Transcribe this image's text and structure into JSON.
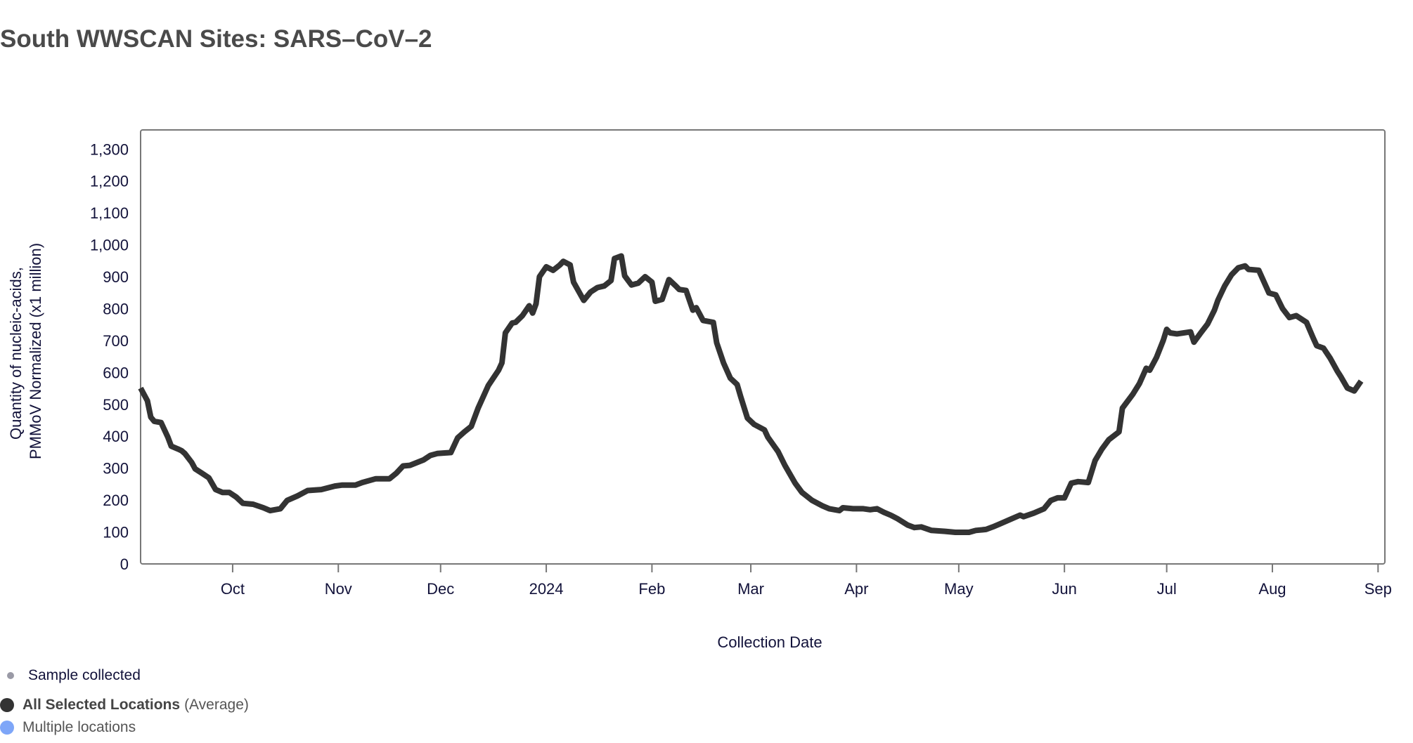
{
  "title": "South WWSCAN Sites: SARS–CoV–2",
  "legend": {
    "sample": "Sample collected",
    "series_bold": "All Selected Locations",
    "series_suffix": "(Average)",
    "multiple": "Multiple locations"
  },
  "colors": {
    "line": "#333333",
    "sample_dot": "#9a9aa6",
    "selected_dot": "#333333",
    "multiple_dot": "#7ea6f8"
  },
  "chart_data": {
    "type": "line",
    "xlabel": "Collection Date",
    "ylabel": [
      "Quantity of nucleic-acids,",
      "PMMoV Normalized (x1 million)"
    ],
    "xlim": [
      "2023-09-04",
      "2024-09-03"
    ],
    "ylim": [
      0,
      1360
    ],
    "yticks": [
      0,
      100,
      200,
      300,
      400,
      500,
      600,
      700,
      800,
      900,
      1000,
      1100,
      1200,
      1300
    ],
    "ytick_labels": [
      "0",
      "100",
      "200",
      "300",
      "400",
      "500",
      "600",
      "700",
      "800",
      "900",
      "1,000",
      "1,100",
      "1,200",
      "1,300"
    ],
    "xticks": [
      {
        "date": "2023-10-01",
        "label": "Oct"
      },
      {
        "date": "2023-11-01",
        "label": "Nov"
      },
      {
        "date": "2023-12-01",
        "label": "Dec"
      },
      {
        "date": "2024-01-01",
        "label": "2024"
      },
      {
        "date": "2024-02-01",
        "label": "Feb"
      },
      {
        "date": "2024-03-01",
        "label": "Mar"
      },
      {
        "date": "2024-04-01",
        "label": "Apr"
      },
      {
        "date": "2024-05-01",
        "label": "May"
      },
      {
        "date": "2024-06-01",
        "label": "Jun"
      },
      {
        "date": "2024-07-01",
        "label": "Jul"
      },
      {
        "date": "2024-08-01",
        "label": "Aug"
      },
      {
        "date": "2024-09-01",
        "label": "Sep"
      }
    ],
    "grid": false,
    "series": [
      {
        "name": "All Selected Locations",
        "points": [
          [
            "2023-09-04",
            551
          ],
          [
            "2023-09-06",
            511
          ],
          [
            "2023-09-07",
            460
          ],
          [
            "2023-09-08",
            447
          ],
          [
            "2023-09-10",
            443
          ],
          [
            "2023-09-12",
            397
          ],
          [
            "2023-09-13",
            369
          ],
          [
            "2023-09-15",
            360
          ],
          [
            "2023-09-16",
            355
          ],
          [
            "2023-09-17",
            346
          ],
          [
            "2023-09-19",
            318
          ],
          [
            "2023-09-20",
            298
          ],
          [
            "2023-09-22",
            284
          ],
          [
            "2023-09-24",
            270
          ],
          [
            "2023-09-26",
            233
          ],
          [
            "2023-09-28",
            224
          ],
          [
            "2023-09-30",
            224
          ],
          [
            "2023-10-02",
            210
          ],
          [
            "2023-10-04",
            190
          ],
          [
            "2023-10-07",
            187
          ],
          [
            "2023-10-10",
            176
          ],
          [
            "2023-10-12",
            167
          ],
          [
            "2023-10-15",
            173
          ],
          [
            "2023-10-17",
            199
          ],
          [
            "2023-10-20",
            213
          ],
          [
            "2023-10-23",
            230
          ],
          [
            "2023-10-27",
            233
          ],
          [
            "2023-10-31",
            244
          ],
          [
            "2023-11-02",
            247
          ],
          [
            "2023-11-06",
            247
          ],
          [
            "2023-11-08",
            255
          ],
          [
            "2023-11-12",
            267
          ],
          [
            "2023-11-16",
            267
          ],
          [
            "2023-11-18",
            284
          ],
          [
            "2023-11-20",
            307
          ],
          [
            "2023-11-22",
            309
          ],
          [
            "2023-11-26",
            326
          ],
          [
            "2023-11-28",
            340
          ],
          [
            "2023-11-30",
            346
          ],
          [
            "2023-12-04",
            349
          ],
          [
            "2023-12-06",
            395
          ],
          [
            "2023-12-08",
            414
          ],
          [
            "2023-12-10",
            431
          ],
          [
            "2023-12-12",
            488
          ],
          [
            "2023-12-15",
            559
          ],
          [
            "2023-12-18",
            607
          ],
          [
            "2023-12-19",
            630
          ],
          [
            "2023-12-20",
            724
          ],
          [
            "2023-12-22",
            755
          ],
          [
            "2023-12-23",
            757
          ],
          [
            "2023-12-25",
            778
          ],
          [
            "2023-12-27",
            809
          ],
          [
            "2023-12-28",
            786
          ],
          [
            "2023-12-29",
            815
          ],
          [
            "2023-12-30",
            900
          ],
          [
            "2024-01-01",
            931
          ],
          [
            "2024-01-03",
            920
          ],
          [
            "2024-01-05",
            937
          ],
          [
            "2024-01-06",
            948
          ],
          [
            "2024-01-08",
            937
          ],
          [
            "2024-01-09",
            883
          ],
          [
            "2024-01-12",
            826
          ],
          [
            "2024-01-14",
            852
          ],
          [
            "2024-01-16",
            866
          ],
          [
            "2024-01-18",
            871
          ],
          [
            "2024-01-20",
            888
          ],
          [
            "2024-01-21",
            957
          ],
          [
            "2024-01-23",
            965
          ],
          [
            "2024-01-24",
            903
          ],
          [
            "2024-01-26",
            874
          ],
          [
            "2024-01-28",
            880
          ],
          [
            "2024-01-30",
            900
          ],
          [
            "2024-02-01",
            883
          ],
          [
            "2024-02-02",
            823
          ],
          [
            "2024-02-04",
            829
          ],
          [
            "2024-02-06",
            891
          ],
          [
            "2024-02-08",
            871
          ],
          [
            "2024-02-09",
            860
          ],
          [
            "2024-02-11",
            857
          ],
          [
            "2024-02-13",
            795
          ],
          [
            "2024-02-14",
            803
          ],
          [
            "2024-02-16",
            763
          ],
          [
            "2024-02-19",
            757
          ],
          [
            "2024-02-20",
            693
          ],
          [
            "2024-02-22",
            630
          ],
          [
            "2024-02-24",
            582
          ],
          [
            "2024-02-26",
            562
          ],
          [
            "2024-02-27",
            525
          ],
          [
            "2024-02-29",
            457
          ],
          [
            "2024-03-02",
            437
          ],
          [
            "2024-03-05",
            420
          ],
          [
            "2024-03-06",
            397
          ],
          [
            "2024-03-09",
            352
          ],
          [
            "2024-03-11",
            309
          ],
          [
            "2024-03-14",
            253
          ],
          [
            "2024-03-16",
            224
          ],
          [
            "2024-03-19",
            199
          ],
          [
            "2024-03-22",
            182
          ],
          [
            "2024-03-24",
            173
          ],
          [
            "2024-03-27",
            167
          ],
          [
            "2024-03-28",
            176
          ],
          [
            "2024-03-31",
            173
          ],
          [
            "2024-04-03",
            173
          ],
          [
            "2024-04-05",
            170
          ],
          [
            "2024-04-07",
            173
          ],
          [
            "2024-04-09",
            162
          ],
          [
            "2024-04-11",
            153
          ],
          [
            "2024-04-13",
            142
          ],
          [
            "2024-04-16",
            122
          ],
          [
            "2024-04-18",
            114
          ],
          [
            "2024-04-20",
            116
          ],
          [
            "2024-04-23",
            105
          ],
          [
            "2024-04-27",
            102
          ],
          [
            "2024-04-30",
            99
          ],
          [
            "2024-05-04",
            99
          ],
          [
            "2024-05-06",
            105
          ],
          [
            "2024-05-09",
            108
          ],
          [
            "2024-05-11",
            116
          ],
          [
            "2024-05-13",
            125
          ],
          [
            "2024-05-16",
            139
          ],
          [
            "2024-05-19",
            153
          ],
          [
            "2024-05-20",
            148
          ],
          [
            "2024-05-23",
            159
          ],
          [
            "2024-05-26",
            173
          ],
          [
            "2024-05-28",
            199
          ],
          [
            "2024-05-30",
            207
          ],
          [
            "2024-06-01",
            207
          ],
          [
            "2024-06-03",
            253
          ],
          [
            "2024-06-05",
            258
          ],
          [
            "2024-06-08",
            255
          ],
          [
            "2024-06-10",
            324
          ],
          [
            "2024-06-12",
            360
          ],
          [
            "2024-06-14",
            389
          ],
          [
            "2024-06-17",
            414
          ],
          [
            "2024-06-18",
            488
          ],
          [
            "2024-06-21",
            531
          ],
          [
            "2024-06-23",
            565
          ],
          [
            "2024-06-25",
            613
          ],
          [
            "2024-06-26",
            607
          ],
          [
            "2024-06-28",
            647
          ],
          [
            "2024-06-30",
            701
          ],
          [
            "2024-07-01",
            735
          ],
          [
            "2024-07-02",
            724
          ],
          [
            "2024-07-04",
            721
          ],
          [
            "2024-07-08",
            727
          ],
          [
            "2024-07-09",
            695
          ],
          [
            "2024-07-11",
            724
          ],
          [
            "2024-07-13",
            752
          ],
          [
            "2024-07-15",
            795
          ],
          [
            "2024-07-16",
            826
          ],
          [
            "2024-07-18",
            871
          ],
          [
            "2024-07-20",
            906
          ],
          [
            "2024-07-22",
            928
          ],
          [
            "2024-07-24",
            934
          ],
          [
            "2024-07-25",
            923
          ],
          [
            "2024-07-28",
            920
          ],
          [
            "2024-07-31",
            849
          ],
          [
            "2024-08-02",
            843
          ],
          [
            "2024-08-04",
            800
          ],
          [
            "2024-08-06",
            772
          ],
          [
            "2024-08-08",
            778
          ],
          [
            "2024-08-11",
            757
          ],
          [
            "2024-08-13",
            707
          ],
          [
            "2024-08-14",
            684
          ],
          [
            "2024-08-16",
            676
          ],
          [
            "2024-08-18",
            644
          ],
          [
            "2024-08-20",
            605
          ],
          [
            "2024-08-21",
            588
          ],
          [
            "2024-08-23",
            551
          ],
          [
            "2024-08-25",
            542
          ],
          [
            "2024-08-27",
            573
          ]
        ]
      }
    ]
  }
}
